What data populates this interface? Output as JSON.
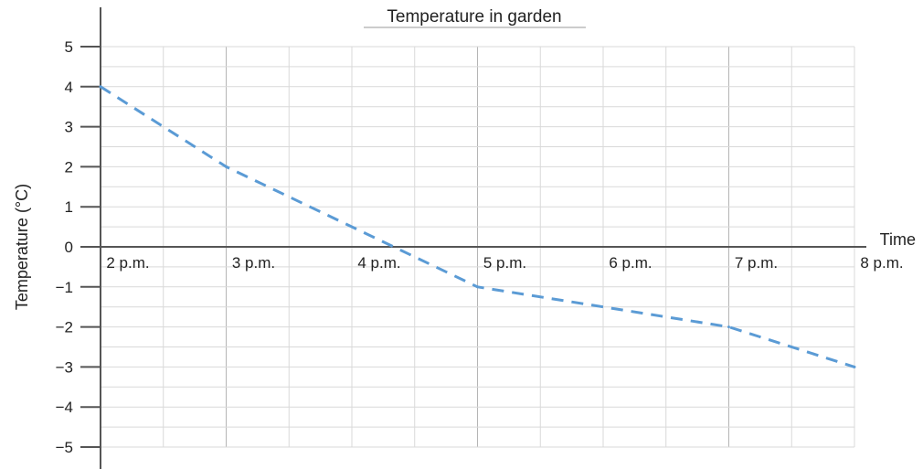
{
  "chart_data": {
    "type": "line",
    "title": "Temperature in garden",
    "xlabel": "Time",
    "ylabel": "Temperature (°C)",
    "categories": [
      "2 p.m.",
      "3 p.m.",
      "4 p.m.",
      "5 p.m.",
      "6 p.m.",
      "7 p.m.",
      "8 p.m."
    ],
    "ylim": [
      -5,
      5
    ],
    "y_ticks": [
      "5",
      "4",
      "3",
      "2",
      "1",
      "0",
      "−1",
      "−2",
      "−3",
      "−4",
      "−5"
    ],
    "series": [
      {
        "style": "dashed",
        "color": "#5b9bd5",
        "points": [
          {
            "x": "2 p.m.",
            "y": 4
          },
          {
            "x": "3 p.m.",
            "y": 2
          },
          {
            "x": "5 p.m.",
            "y": -1
          },
          {
            "x": "7 p.m.",
            "y": -2
          },
          {
            "x": "8 p.m.",
            "y": -3
          }
        ]
      }
    ],
    "grid": true,
    "grid_color": "#d9d9d9",
    "axis_color": "#555555"
  }
}
